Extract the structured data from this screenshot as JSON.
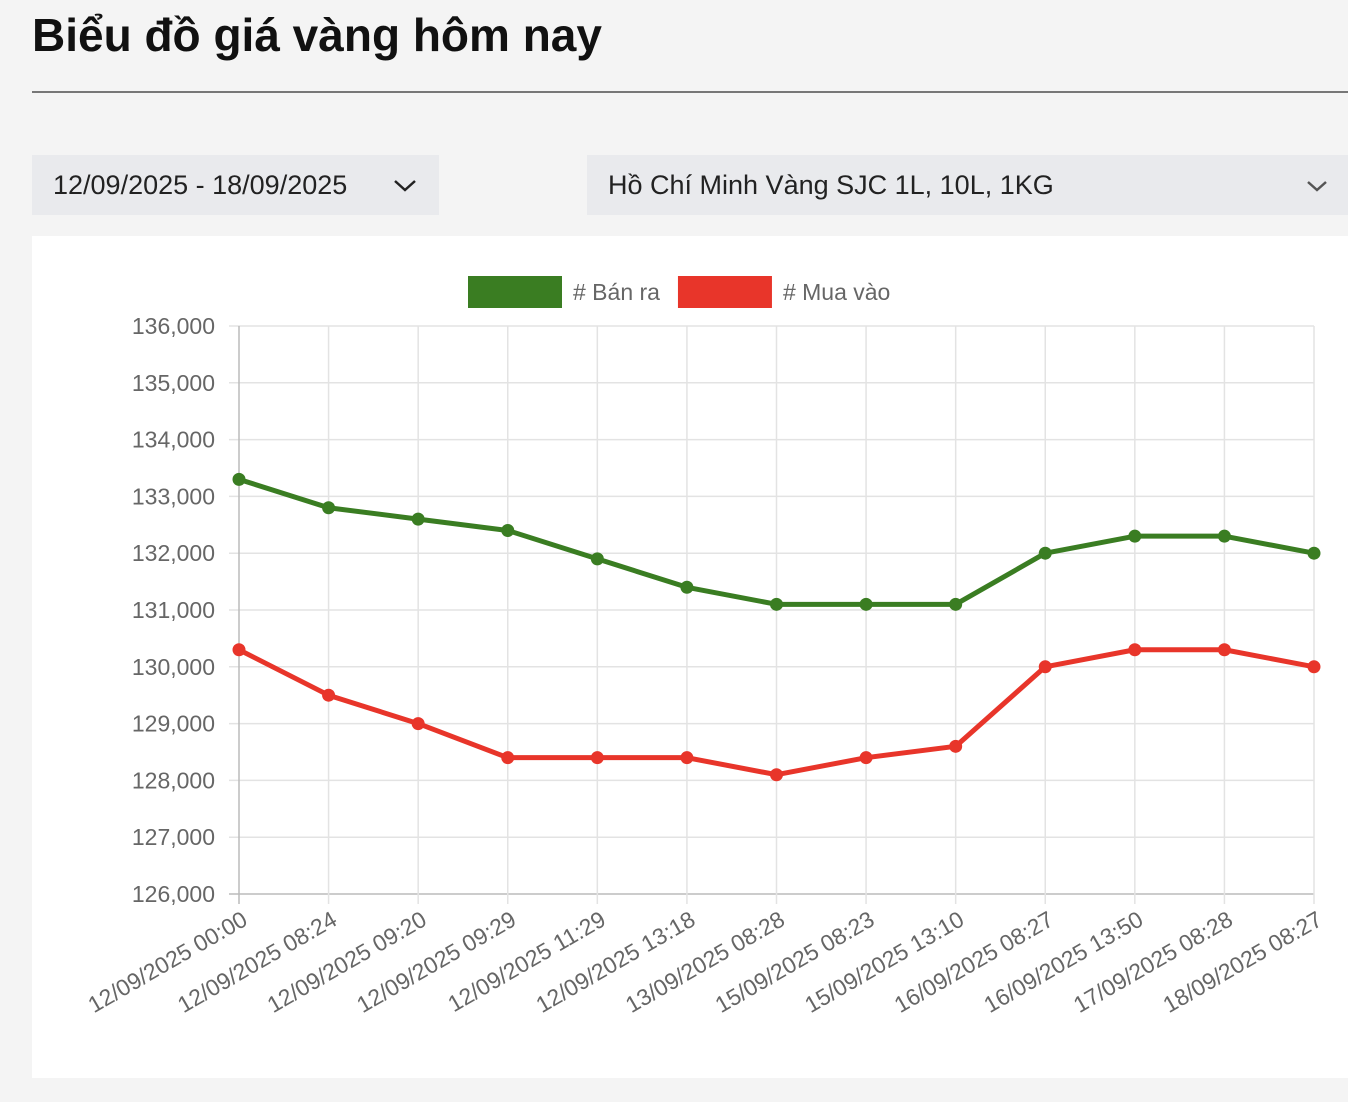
{
  "header": {
    "title": "Biểu đồ giá vàng hôm nay"
  },
  "filters": {
    "date_range": "12/09/2025 - 18/09/2025",
    "product": "Hồ Chí Minh Vàng SJC 1L, 10L, 1KG"
  },
  "chart_data": {
    "type": "line",
    "categories": [
      "12/09/2025 00:00",
      "12/09/2025 08:24",
      "12/09/2025 09:20",
      "12/09/2025 09:29",
      "12/09/2025 11:29",
      "12/09/2025 13:18",
      "13/09/2025 08:28",
      "15/09/2025 08:23",
      "15/09/2025 13:10",
      "16/09/2025 08:27",
      "16/09/2025 13:50",
      "17/09/2025 08:28",
      "18/09/2025 08:27"
    ],
    "series": [
      {
        "name": "# Bán ra",
        "color": "#3a7d22",
        "values": [
          133300,
          132800,
          132600,
          132400,
          131900,
          131400,
          131100,
          131100,
          131100,
          132000,
          132300,
          132300,
          132000
        ]
      },
      {
        "name": "# Mua vào",
        "color": "#e8352a",
        "values": [
          130300,
          129500,
          129000,
          128400,
          128400,
          128400,
          128100,
          128400,
          128600,
          130000,
          130300,
          130300,
          130000
        ]
      }
    ],
    "ylim": [
      126000,
      136000
    ],
    "yticks": [
      {
        "value": 126000,
        "label": "126,000"
      },
      {
        "value": 127000,
        "label": "127,000"
      },
      {
        "value": 128000,
        "label": "128,000"
      },
      {
        "value": 129000,
        "label": "129,000"
      },
      {
        "value": 130000,
        "label": "130,000"
      },
      {
        "value": 131000,
        "label": "131,000"
      },
      {
        "value": 132000,
        "label": "132,000"
      },
      {
        "value": 133000,
        "label": "133,000"
      },
      {
        "value": 134000,
        "label": "134,000"
      },
      {
        "value": 135000,
        "label": "135,000"
      },
      {
        "value": 136000,
        "label": "136,000"
      }
    ],
    "grid": true,
    "legend": "top"
  }
}
